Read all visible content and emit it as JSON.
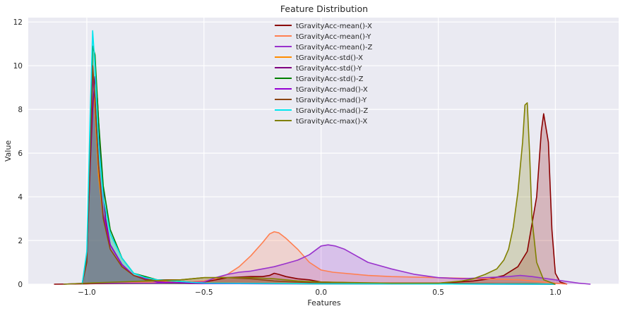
{
  "chart_data": {
    "type": "area",
    "title": "Feature Distribution",
    "xlabel": "Features",
    "ylabel": "Value",
    "xlim": [
      -1.25,
      1.27
    ],
    "ylim": [
      0,
      12.2
    ],
    "xticks": [
      -1.0,
      -0.5,
      0.0,
      0.5,
      1.0
    ],
    "xtick_labels": [
      "−1.0",
      "−0.5",
      "0.0",
      "0.5",
      "1.0"
    ],
    "yticks": [
      0,
      2,
      4,
      6,
      8,
      10,
      12
    ],
    "ytick_labels": [
      "0",
      "2",
      "4",
      "6",
      "8",
      "10",
      "12"
    ],
    "grid": true,
    "legend_position": "top-center",
    "background": "#eaeaf2",
    "series": [
      {
        "name": "tGravityAcc-mean()-X",
        "color": "#8b0000",
        "points": [
          [
            -1.14,
            0
          ],
          [
            -1.0,
            0.02
          ],
          [
            -0.5,
            0.1
          ],
          [
            -0.4,
            0.3
          ],
          [
            -0.3,
            0.35
          ],
          [
            -0.25,
            0.35
          ],
          [
            -0.22,
            0.4
          ],
          [
            -0.2,
            0.5
          ],
          [
            -0.18,
            0.45
          ],
          [
            -0.15,
            0.35
          ],
          [
            -0.1,
            0.25
          ],
          [
            -0.05,
            0.2
          ],
          [
            0.0,
            0.1
          ],
          [
            0.2,
            0.05
          ],
          [
            0.5,
            0.05
          ],
          [
            0.65,
            0.15
          ],
          [
            0.72,
            0.25
          ],
          [
            0.78,
            0.4
          ],
          [
            0.84,
            0.8
          ],
          [
            0.88,
            1.5
          ],
          [
            0.92,
            4.0
          ],
          [
            0.94,
            7.0
          ],
          [
            0.95,
            7.8
          ],
          [
            0.97,
            6.5
          ],
          [
            0.985,
            2.5
          ],
          [
            1.0,
            0.5
          ],
          [
            1.02,
            0.1
          ],
          [
            1.05,
            0
          ]
        ]
      },
      {
        "name": "tGravityAcc-mean()-Y",
        "color": "#ff7f50",
        "points": [
          [
            -1.1,
            0
          ],
          [
            -1.0,
            0.05
          ],
          [
            -0.8,
            0.08
          ],
          [
            -0.6,
            0.1
          ],
          [
            -0.5,
            0.15
          ],
          [
            -0.45,
            0.25
          ],
          [
            -0.4,
            0.45
          ],
          [
            -0.35,
            0.8
          ],
          [
            -0.3,
            1.3
          ],
          [
            -0.25,
            1.9
          ],
          [
            -0.22,
            2.3
          ],
          [
            -0.2,
            2.4
          ],
          [
            -0.18,
            2.35
          ],
          [
            -0.15,
            2.1
          ],
          [
            -0.1,
            1.6
          ],
          [
            -0.05,
            1.0
          ],
          [
            0.0,
            0.65
          ],
          [
            0.05,
            0.55
          ],
          [
            0.1,
            0.5
          ],
          [
            0.2,
            0.4
          ],
          [
            0.3,
            0.35
          ],
          [
            0.5,
            0.3
          ],
          [
            0.7,
            0.25
          ],
          [
            0.85,
            0.2
          ],
          [
            0.95,
            0.1
          ],
          [
            1.05,
            0
          ]
        ]
      },
      {
        "name": "tGravityAcc-mean()-Z",
        "color": "#9932cc",
        "points": [
          [
            -1.1,
            0
          ],
          [
            -1.0,
            0.05
          ],
          [
            -0.7,
            0.05
          ],
          [
            -0.5,
            0.1
          ],
          [
            -0.45,
            0.3
          ],
          [
            -0.4,
            0.45
          ],
          [
            -0.35,
            0.55
          ],
          [
            -0.3,
            0.6
          ],
          [
            -0.25,
            0.7
          ],
          [
            -0.2,
            0.8
          ],
          [
            -0.15,
            0.95
          ],
          [
            -0.1,
            1.1
          ],
          [
            -0.05,
            1.35
          ],
          [
            0.0,
            1.75
          ],
          [
            0.03,
            1.8
          ],
          [
            0.06,
            1.75
          ],
          [
            0.1,
            1.6
          ],
          [
            0.15,
            1.3
          ],
          [
            0.2,
            1.0
          ],
          [
            0.3,
            0.7
          ],
          [
            0.4,
            0.45
          ],
          [
            0.5,
            0.3
          ],
          [
            0.6,
            0.25
          ],
          [
            0.7,
            0.3
          ],
          [
            0.8,
            0.35
          ],
          [
            0.85,
            0.4
          ],
          [
            0.9,
            0.35
          ],
          [
            1.0,
            0.2
          ],
          [
            1.1,
            0.05
          ],
          [
            1.15,
            0
          ]
        ]
      },
      {
        "name": "tGravityAcc-std()-X",
        "color": "#ff8c00",
        "points": [
          [
            -1.02,
            0
          ],
          [
            -1.0,
            1.0
          ],
          [
            -0.985,
            6.0
          ],
          [
            -0.975,
            10.0
          ],
          [
            -0.965,
            8.0
          ],
          [
            -0.95,
            5.0
          ],
          [
            -0.93,
            3.0
          ],
          [
            -0.9,
            1.6
          ],
          [
            -0.85,
            0.8
          ],
          [
            -0.8,
            0.4
          ],
          [
            -0.7,
            0.15
          ],
          [
            -0.5,
            0.05
          ],
          [
            0.0,
            0.02
          ],
          [
            1.0,
            0
          ]
        ]
      },
      {
        "name": "tGravityAcc-std()-Y",
        "color": "#800080",
        "points": [
          [
            -1.02,
            0
          ],
          [
            -1.0,
            1.2
          ],
          [
            -0.985,
            5.5
          ],
          [
            -0.975,
            8.0
          ],
          [
            -0.965,
            9.5
          ],
          [
            -0.955,
            8.5
          ],
          [
            -0.94,
            5.5
          ],
          [
            -0.92,
            3.0
          ],
          [
            -0.9,
            1.8
          ],
          [
            -0.85,
            0.9
          ],
          [
            -0.8,
            0.4
          ],
          [
            -0.7,
            0.1
          ],
          [
            -0.5,
            0.03
          ],
          [
            0.0,
            0.02
          ],
          [
            1.0,
            0
          ]
        ]
      },
      {
        "name": "tGravityAcc-std()-Z",
        "color": "#008000",
        "points": [
          [
            -1.02,
            0
          ],
          [
            -1.0,
            1.2
          ],
          [
            -0.985,
            6.5
          ],
          [
            -0.975,
            10.9
          ],
          [
            -0.965,
            10.5
          ],
          [
            -0.95,
            7.5
          ],
          [
            -0.93,
            4.5
          ],
          [
            -0.9,
            2.5
          ],
          [
            -0.85,
            1.2
          ],
          [
            -0.8,
            0.5
          ],
          [
            -0.7,
            0.2
          ],
          [
            -0.5,
            0.05
          ],
          [
            0.0,
            0.02
          ],
          [
            0.9,
            0.02
          ],
          [
            1.0,
            0
          ]
        ]
      },
      {
        "name": "tGravityAcc-mad()-X",
        "color": "#9400d3",
        "points": [
          [
            -1.02,
            0
          ],
          [
            -1.0,
            1.0
          ],
          [
            -0.985,
            6.0
          ],
          [
            -0.975,
            9.5
          ],
          [
            -0.965,
            8.5
          ],
          [
            -0.95,
            5.5
          ],
          [
            -0.93,
            3.2
          ],
          [
            -0.9,
            1.8
          ],
          [
            -0.85,
            0.9
          ],
          [
            -0.8,
            0.4
          ],
          [
            -0.7,
            0.1
          ],
          [
            -0.5,
            0.03
          ],
          [
            0.0,
            0.02
          ],
          [
            1.0,
            0
          ]
        ]
      },
      {
        "name": "tGravityAcc-mad()-Y",
        "color": "#8b4513",
        "points": [
          [
            -1.02,
            0
          ],
          [
            -1.0,
            1.0
          ],
          [
            -0.985,
            6.0
          ],
          [
            -0.975,
            10.0
          ],
          [
            -0.965,
            8.5
          ],
          [
            -0.95,
            5.5
          ],
          [
            -0.93,
            3.0
          ],
          [
            -0.9,
            1.6
          ],
          [
            -0.85,
            0.8
          ],
          [
            -0.8,
            0.4
          ],
          [
            -0.75,
            0.2
          ],
          [
            -0.6,
            0.2
          ],
          [
            -0.5,
            0.3
          ],
          [
            -0.4,
            0.3
          ],
          [
            -0.3,
            0.25
          ],
          [
            -0.2,
            0.15
          ],
          [
            0.0,
            0.05
          ],
          [
            0.5,
            0.05
          ],
          [
            1.0,
            0
          ]
        ]
      },
      {
        "name": "tGravityAcc-mad()-Z",
        "color": "#00e5ee",
        "points": [
          [
            -1.02,
            0
          ],
          [
            -1.0,
            1.5
          ],
          [
            -0.985,
            8.0
          ],
          [
            -0.975,
            11.6
          ],
          [
            -0.965,
            10.0
          ],
          [
            -0.95,
            6.5
          ],
          [
            -0.93,
            4.0
          ],
          [
            -0.9,
            2.3
          ],
          [
            -0.85,
            1.2
          ],
          [
            -0.8,
            0.5
          ],
          [
            -0.75,
            0.3
          ],
          [
            -0.7,
            0.2
          ],
          [
            -0.5,
            0.05
          ],
          [
            0.0,
            0.02
          ],
          [
            1.0,
            0
          ]
        ]
      },
      {
        "name": "tGravityAcc-max()-X",
        "color": "#808000",
        "points": [
          [
            -1.1,
            0
          ],
          [
            -1.0,
            0.05
          ],
          [
            -0.6,
            0.2
          ],
          [
            -0.5,
            0.3
          ],
          [
            -0.4,
            0.3
          ],
          [
            -0.3,
            0.3
          ],
          [
            -0.2,
            0.25
          ],
          [
            -0.1,
            0.15
          ],
          [
            0.0,
            0.1
          ],
          [
            0.3,
            0.05
          ],
          [
            0.5,
            0.05
          ],
          [
            0.6,
            0.15
          ],
          [
            0.65,
            0.25
          ],
          [
            0.7,
            0.45
          ],
          [
            0.75,
            0.7
          ],
          [
            0.78,
            1.1
          ],
          [
            0.8,
            1.6
          ],
          [
            0.82,
            2.6
          ],
          [
            0.84,
            4.2
          ],
          [
            0.86,
            6.5
          ],
          [
            0.87,
            8.2
          ],
          [
            0.88,
            8.3
          ],
          [
            0.89,
            6.0
          ],
          [
            0.9,
            3.0
          ],
          [
            0.92,
            1.0
          ],
          [
            0.95,
            0.2
          ],
          [
            1.0,
            0
          ]
        ]
      }
    ]
  }
}
